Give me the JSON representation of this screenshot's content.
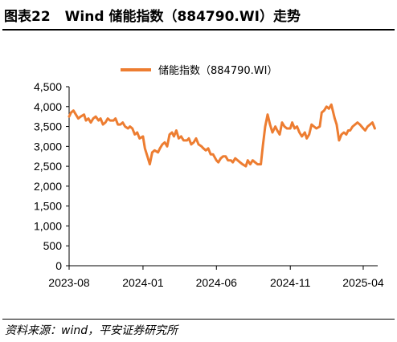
{
  "header": {
    "figure_number": "图表22",
    "title": "Wind 储能指数（884790.WI）走势"
  },
  "footer": {
    "source": "资料来源：wind，平安证券研究所"
  },
  "chart_data": {
    "type": "line",
    "title": "",
    "xlabel": "",
    "ylabel": "",
    "ylim": [
      0,
      4500
    ],
    "yticks": [
      0,
      500,
      1000,
      1500,
      2000,
      2500,
      3000,
      3500,
      4000,
      4500
    ],
    "ytick_labels": [
      "0",
      "500",
      "1,000",
      "1,500",
      "2,000",
      "2,500",
      "3,000",
      "3,500",
      "4,000",
      "4,500"
    ],
    "xlim": [
      "2023-08-01",
      "2025-05-01"
    ],
    "xticks": [
      "2023-08-01",
      "2024-01-01",
      "2024-06-01",
      "2024-11-01",
      "2025-04-01"
    ],
    "xtick_labels": [
      "2023-08",
      "2024-01",
      "2024-06",
      "2024-11",
      "2025-04"
    ],
    "grid": false,
    "legend_position": "top-center",
    "color": "#ED7D31",
    "series": [
      {
        "name": "储能指数（884790.WI）",
        "x": [
          "2023-08-01",
          "2023-08-05",
          "2023-08-10",
          "2023-08-15",
          "2023-08-20",
          "2023-08-25",
          "2023-09-01",
          "2023-09-05",
          "2023-09-10",
          "2023-09-15",
          "2023-09-20",
          "2023-09-25",
          "2023-10-01",
          "2023-10-05",
          "2023-10-10",
          "2023-10-15",
          "2023-10-20",
          "2023-10-25",
          "2023-11-01",
          "2023-11-05",
          "2023-11-10",
          "2023-11-15",
          "2023-11-20",
          "2023-11-25",
          "2023-12-01",
          "2023-12-05",
          "2023-12-10",
          "2023-12-15",
          "2023-12-20",
          "2023-12-25",
          "2024-01-01",
          "2024-01-05",
          "2024-01-10",
          "2024-01-15",
          "2024-01-20",
          "2024-01-25",
          "2024-02-01",
          "2024-02-05",
          "2024-02-10",
          "2024-02-15",
          "2024-02-20",
          "2024-02-25",
          "2024-03-01",
          "2024-03-05",
          "2024-03-10",
          "2024-03-15",
          "2024-03-20",
          "2024-03-25",
          "2024-04-01",
          "2024-04-05",
          "2024-04-10",
          "2024-04-15",
          "2024-04-20",
          "2024-04-25",
          "2024-05-01",
          "2024-05-05",
          "2024-05-10",
          "2024-05-15",
          "2024-05-20",
          "2024-05-25",
          "2024-06-01",
          "2024-06-05",
          "2024-06-10",
          "2024-06-15",
          "2024-06-20",
          "2024-06-25",
          "2024-07-01",
          "2024-07-05",
          "2024-07-10",
          "2024-07-15",
          "2024-07-20",
          "2024-07-25",
          "2024-08-01",
          "2024-08-05",
          "2024-08-10",
          "2024-08-15",
          "2024-08-20",
          "2024-08-25",
          "2024-09-01",
          "2024-09-05",
          "2024-09-10",
          "2024-09-15",
          "2024-09-20",
          "2024-09-25",
          "2024-10-01",
          "2024-10-05",
          "2024-10-10",
          "2024-10-15",
          "2024-10-20",
          "2024-10-25",
          "2024-11-01",
          "2024-11-05",
          "2024-11-10",
          "2024-11-15",
          "2024-11-20",
          "2024-11-25",
          "2024-12-01",
          "2024-12-05",
          "2024-12-10",
          "2024-12-15",
          "2024-12-20",
          "2024-12-25",
          "2025-01-01",
          "2025-01-05",
          "2025-01-10",
          "2025-01-15",
          "2025-01-20",
          "2025-01-25",
          "2025-02-01",
          "2025-02-05",
          "2025-02-10",
          "2025-02-15",
          "2025-02-20",
          "2025-02-25",
          "2025-03-01",
          "2025-03-05",
          "2025-03-10",
          "2025-03-15",
          "2025-03-20",
          "2025-03-25",
          "2025-04-01",
          "2025-04-05",
          "2025-04-10",
          "2025-04-15",
          "2025-04-20",
          "2025-04-25"
        ],
        "values": [
          3750,
          3850,
          3900,
          3800,
          3700,
          3750,
          3800,
          3650,
          3700,
          3600,
          3700,
          3750,
          3650,
          3700,
          3550,
          3600,
          3700,
          3650,
          3650,
          3700,
          3550,
          3550,
          3600,
          3500,
          3450,
          3500,
          3450,
          3300,
          3350,
          3200,
          3250,
          2950,
          2750,
          2550,
          2850,
          2900,
          2850,
          2950,
          3050,
          3100,
          3000,
          3300,
          3350,
          3250,
          3400,
          3200,
          3250,
          3150,
          3150,
          3200,
          3050,
          3100,
          3200,
          3050,
          3000,
          2950,
          2900,
          2950,
          2800,
          2800,
          2650,
          2600,
          2700,
          2750,
          2750,
          2650,
          2650,
          2600,
          2700,
          2650,
          2600,
          2550,
          2500,
          2650,
          2550,
          2650,
          2600,
          2550,
          2550,
          3000,
          3500,
          3800,
          3550,
          3350,
          3500,
          3400,
          3300,
          3600,
          3500,
          3450,
          3450,
          3600,
          3450,
          3500,
          3350,
          3250,
          3350,
          3200,
          3300,
          3550,
          3500,
          3450,
          3500,
          3850,
          3900,
          4000,
          3950,
          4050,
          3700,
          3550,
          3150,
          3300,
          3350,
          3300,
          3400,
          3400,
          3500,
          3550,
          3600,
          3550,
          3450,
          3400,
          3500,
          3550,
          3600,
          3450
        ]
      }
    ]
  }
}
